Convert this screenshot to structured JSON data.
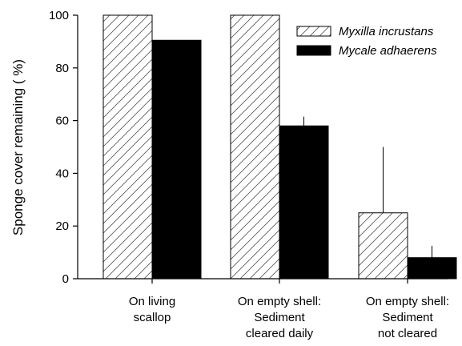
{
  "chart_data": {
    "type": "bar",
    "categories": [
      [
        "On living",
        "scallop"
      ],
      [
        "On empty shell:",
        "Sediment",
        "cleared daily"
      ],
      [
        "On empty shell:",
        "Sediment",
        "not cleared"
      ]
    ],
    "ylabel": "Sponge cover remaining  ( %)",
    "ylim": [
      0,
      100
    ],
    "yticks": [
      0,
      20,
      40,
      60,
      80,
      100
    ],
    "grid": false,
    "legend_position": "top-right",
    "series": [
      {
        "name": "Myxilla incrustans",
        "pattern": "hatched",
        "color": "#ffffff",
        "values": [
          100,
          100,
          25
        ],
        "error": [
          0,
          0,
          25
        ]
      },
      {
        "name": "Mycale adhaerens",
        "pattern": "solid",
        "color": "#000000",
        "values": [
          90.5,
          58,
          8
        ],
        "error": [
          0,
          3.5,
          4.5
        ]
      }
    ]
  }
}
